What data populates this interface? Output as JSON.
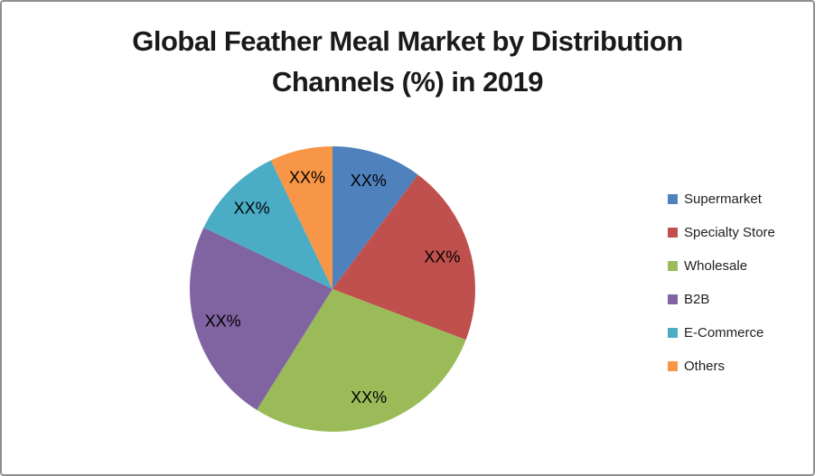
{
  "title": {
    "text": "Global Feather Meal Market by Distribution Channels (%) in 2019",
    "line1": "Global Feather Meal Market by Distribution",
    "line2": "Channels (%) in 2019"
  },
  "chart_data": {
    "type": "pie",
    "title": "Global Feather Meal Market by Distribution Channels (%) in 2019",
    "categories": [
      "Supermarket",
      "Specialty Store",
      "Wholesale",
      "B2B",
      "E-Commerce",
      "Others"
    ],
    "values": [
      10.2,
      20.6,
      28.1,
      23.2,
      10.8,
      7.1
    ],
    "data_labels": [
      "XX%",
      "XX%",
      "XX%",
      "XX%",
      "XX%",
      "XX%"
    ],
    "colors": [
      "#4F81BD",
      "#C0504D",
      "#9BBB59",
      "#8064A2",
      "#4BACC6",
      "#F79646"
    ],
    "start_angle_deg": 0,
    "direction": "clockwise",
    "legend_position": "right",
    "label_color": "#000000",
    "title_color": "#1a1a1a",
    "legend_text_color": "#1f1f1f",
    "frame_border_color": "#8f8f8f",
    "background": "#ffffff"
  }
}
